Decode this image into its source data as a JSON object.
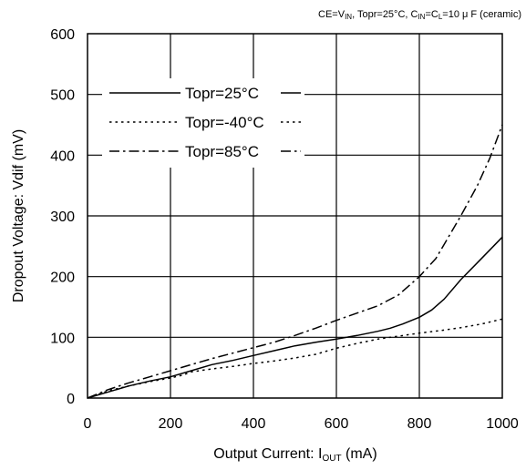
{
  "chart_data": {
    "type": "line",
    "condition_text": {
      "a": "CE=V",
      "a_sub": "IN",
      "b": ", Topr=25°C, C",
      "b_sub": "IN",
      "c": "=C",
      "c_sub": "L",
      "d": "=10 μ F (ceramic)"
    },
    "xlabel": {
      "main": "Output Current: I",
      "sub": "OUT",
      "unit": " (mA)"
    },
    "ylabel": "Dropout Voltage: Vdif (mV)",
    "xlim": [
      0,
      1000
    ],
    "ylim": [
      0,
      600
    ],
    "xticks": [
      0,
      200,
      400,
      600,
      800,
      1000
    ],
    "yticks": [
      0,
      100,
      200,
      300,
      400,
      500,
      600
    ],
    "xtick_labels": [
      "0",
      "200",
      "400",
      "600",
      "800",
      "1000"
    ],
    "ytick_labels": [
      "0",
      "100",
      "200",
      "300",
      "400",
      "500",
      "600"
    ],
    "grid": true,
    "legend_placement": "upper-left",
    "series": [
      {
        "name": "Topr=25°C",
        "style": "solid",
        "x": [
          0,
          50,
          100,
          150,
          200,
          250,
          300,
          350,
          400,
          450,
          500,
          550,
          600,
          650,
          700,
          730,
          760,
          800,
          830,
          860,
          900,
          950,
          1000
        ],
        "y": [
          0,
          10,
          20,
          28,
          35,
          45,
          55,
          62,
          70,
          78,
          86,
          92,
          97,
          103,
          110,
          115,
          122,
          133,
          145,
          163,
          195,
          230,
          265
        ]
      },
      {
        "name": "Topr=-40°C",
        "style": "dotted",
        "x": [
          0,
          50,
          100,
          150,
          200,
          230,
          250,
          300,
          350,
          400,
          450,
          500,
          550,
          600,
          650,
          700,
          750,
          800,
          850,
          900,
          950,
          1000
        ],
        "y": [
          0,
          12,
          20,
          27,
          33,
          38,
          43,
          48,
          52,
          57,
          61,
          66,
          72,
          82,
          90,
          97,
          102,
          107,
          111,
          116,
          122,
          130
        ]
      },
      {
        "name": "Topr=85°C",
        "style": "dashdot",
        "x": [
          0,
          50,
          100,
          150,
          200,
          250,
          300,
          350,
          400,
          450,
          500,
          550,
          600,
          650,
          700,
          750,
          800,
          840,
          870,
          900,
          940,
          970,
          1000
        ],
        "y": [
          0,
          14,
          25,
          35,
          45,
          55,
          65,
          74,
          83,
          92,
          103,
          115,
          128,
          140,
          152,
          170,
          200,
          230,
          265,
          300,
          350,
          395,
          450
        ]
      }
    ]
  }
}
